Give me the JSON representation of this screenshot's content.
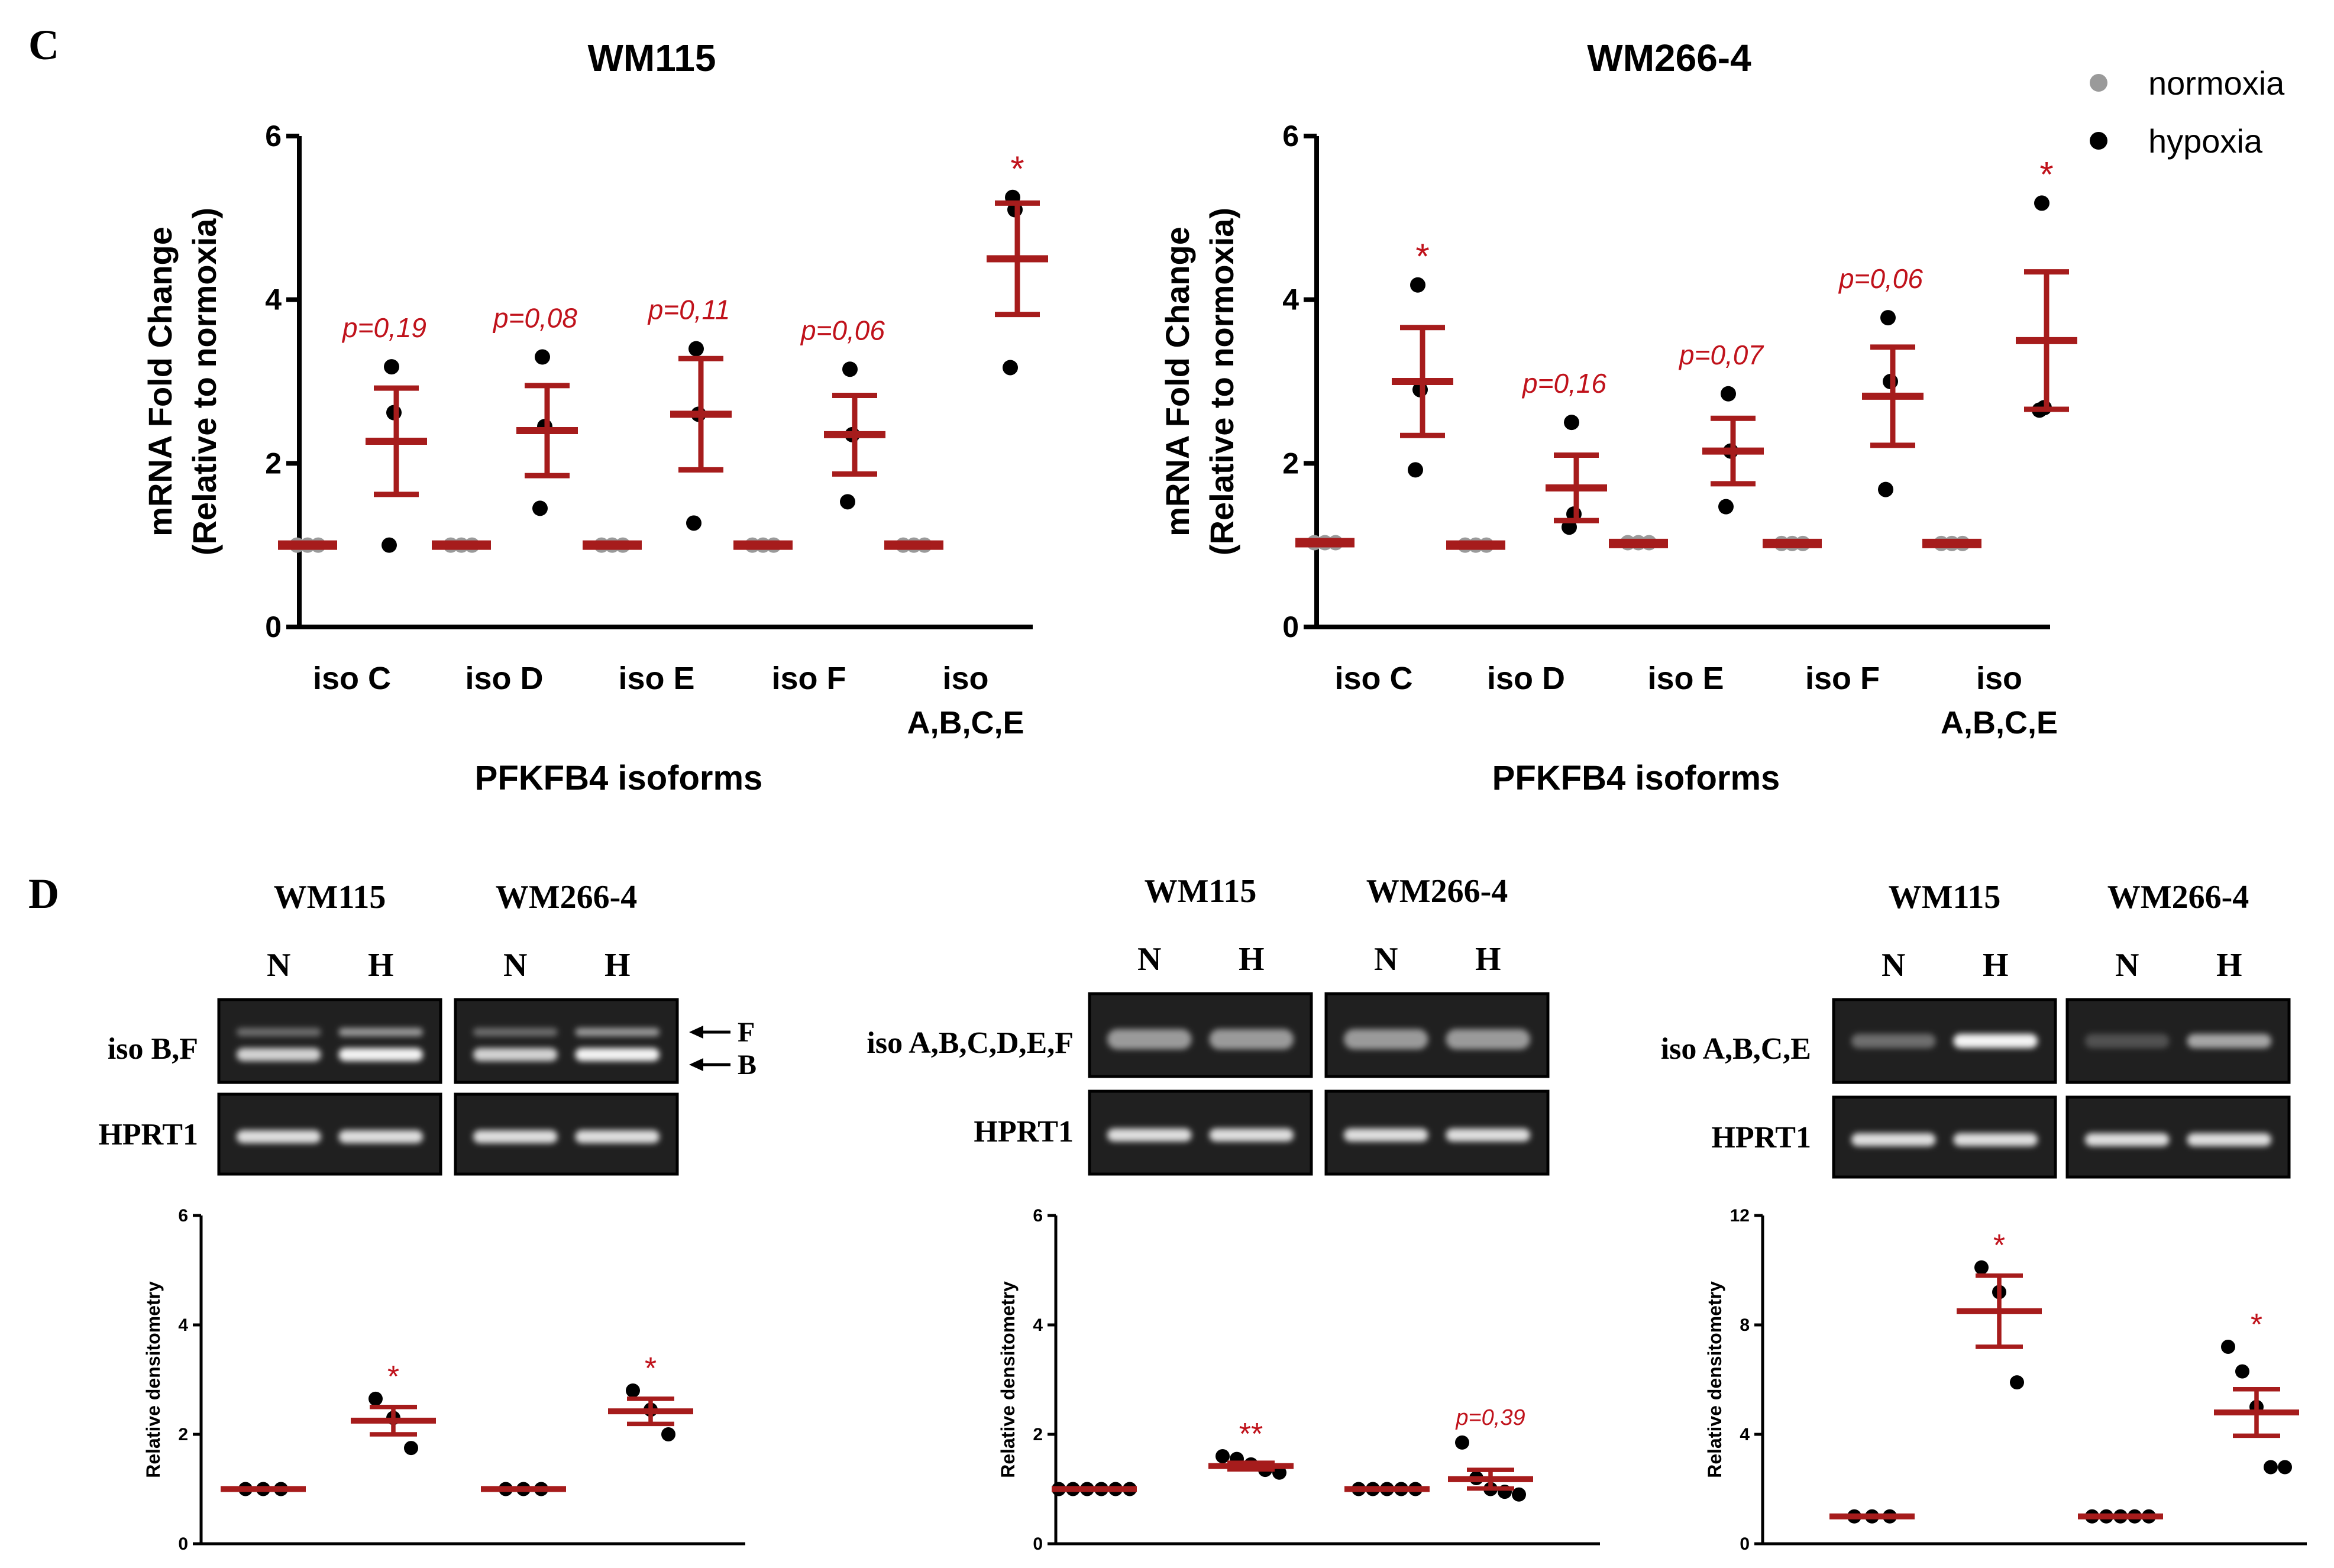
{
  "panels": {
    "C": {
      "letter": "C"
    },
    "D": {
      "letter": "D"
    }
  },
  "legend": {
    "normoxia": "normoxia",
    "hypoxia": "hypoxia",
    "colors": {
      "normoxia": "#9a9a9a",
      "hypoxia": "#000000"
    }
  },
  "colors": {
    "mean_sem": "#a61c1c",
    "annotation": "#c0121b",
    "axis": "#000000"
  },
  "gels": {
    "D1": {
      "cells": [
        "WM115",
        "WM266-4"
      ],
      "lanes": [
        "N",
        "H",
        "N",
        "H"
      ],
      "row_labels": [
        "iso B,F",
        "HPRT1"
      ],
      "arrow_labels": [
        "F",
        "B"
      ]
    },
    "D2": {
      "cells": [
        "WM115",
        "WM266-4"
      ],
      "lanes": [
        "N",
        "H",
        "N",
        "H"
      ],
      "row_labels": [
        "iso A,B,C,D,E,F",
        "HPRT1"
      ]
    },
    "D3": {
      "cells": [
        "WM115",
        "WM266-4"
      ],
      "lanes": [
        "N",
        "H",
        "N",
        "H"
      ],
      "row_labels": [
        "iso A,B,C,E",
        "HPRT1"
      ]
    }
  },
  "chart_data": [
    {
      "id": "C1",
      "type": "scatter",
      "title": "WM115",
      "xlabel": "PFKFB4 isoforms",
      "ylabel": [
        "mRNA Fold Change",
        "(Relative to normoxia)"
      ],
      "ylim": [
        0,
        6
      ],
      "yticks": [
        0,
        2,
        4,
        6
      ],
      "categories": [
        [
          "iso C"
        ],
        [
          "iso D"
        ],
        [
          "iso E"
        ],
        [
          "iso F"
        ],
        [
          "iso",
          "A,B,C,E"
        ]
      ],
      "groups": [
        {
          "normoxia": {
            "points": [
              1,
              1,
              1
            ],
            "mean": 1.0,
            "sem": 0.0
          },
          "hypoxia": {
            "points": [
              3.18,
              2.62,
              1.0
            ],
            "mean": 2.27,
            "sem": 0.65
          },
          "annotation": "p=0,19"
        },
        {
          "normoxia": {
            "points": [
              1,
              1,
              1
            ],
            "mean": 1.0,
            "sem": 0.0
          },
          "hypoxia": {
            "points": [
              3.3,
              2.45,
              1.45
            ],
            "mean": 2.4,
            "sem": 0.55
          },
          "annotation": "p=0,08"
        },
        {
          "normoxia": {
            "points": [
              1,
              1,
              1
            ],
            "mean": 1.0,
            "sem": 0.0
          },
          "hypoxia": {
            "points": [
              3.4,
              2.6,
              1.27
            ],
            "mean": 2.6,
            "sem": 0.68
          },
          "annotation": "p=0,11"
        },
        {
          "normoxia": {
            "points": [
              1,
              1,
              1
            ],
            "mean": 1.0,
            "sem": 0.0
          },
          "hypoxia": {
            "points": [
              3.15,
              2.35,
              1.53
            ],
            "mean": 2.35,
            "sem": 0.48
          },
          "annotation": "p=0,06"
        },
        {
          "normoxia": {
            "points": [
              1,
              1,
              1
            ],
            "mean": 1.0,
            "sem": 0.0
          },
          "hypoxia": {
            "points": [
              5.25,
              5.1,
              3.17
            ],
            "mean": 4.5,
            "sem": 0.68
          },
          "annotation": "*"
        }
      ]
    },
    {
      "id": "C2",
      "type": "scatter",
      "title": "WM266-4",
      "xlabel": "PFKFB4 isoforms",
      "ylabel": [
        "mRNA Fold Change",
        "(Relative to normoxia)"
      ],
      "ylim": [
        0,
        6
      ],
      "yticks": [
        0,
        2,
        4,
        6
      ],
      "categories": [
        [
          "iso C"
        ],
        [
          "iso D"
        ],
        [
          "iso E"
        ],
        [
          "iso F"
        ],
        [
          "iso",
          "A,B,C,E"
        ]
      ],
      "groups": [
        {
          "normoxia": {
            "points": [
              1.03,
              1.03,
              1.03
            ],
            "mean": 1.03,
            "sem": 0.0
          },
          "hypoxia": {
            "points": [
              4.18,
              2.9,
              1.92
            ],
            "mean": 3.0,
            "sem": 0.66
          },
          "annotation": "*"
        },
        {
          "normoxia": {
            "points": [
              1,
              1,
              1
            ],
            "mean": 1.0,
            "sem": 0.0
          },
          "hypoxia": {
            "points": [
              2.5,
              1.38,
              1.22
            ],
            "mean": 1.7,
            "sem": 0.4
          },
          "annotation": "p=0,16"
        },
        {
          "normoxia": {
            "points": [
              1.03,
              1.03,
              1.03
            ],
            "mean": 1.02,
            "sem": 0.0
          },
          "hypoxia": {
            "points": [
              2.85,
              2.15,
              1.47
            ],
            "mean": 2.15,
            "sem": 0.4
          },
          "annotation": "p=0,07"
        },
        {
          "normoxia": {
            "points": [
              1.02,
              1.02,
              1.02
            ],
            "mean": 1.02,
            "sem": 0.0
          },
          "hypoxia": {
            "points": [
              3.78,
              3.0,
              1.68
            ],
            "mean": 2.82,
            "sem": 0.6
          },
          "annotation": "p=0,06"
        },
        {
          "normoxia": {
            "points": [
              1.02,
              1.02,
              1.02
            ],
            "mean": 1.02,
            "sem": 0.0
          },
          "hypoxia": {
            "points": [
              5.18,
              2.68,
              2.65
            ],
            "mean": 3.5,
            "sem": 0.84
          },
          "annotation": "*"
        }
      ]
    },
    {
      "id": "D1",
      "type": "scatter",
      "ylabel": "Relative densitometry",
      "ylim": [
        0,
        6
      ],
      "yticks": [
        0,
        2,
        4,
        6
      ],
      "groups": [
        {
          "points": [
            1,
            1,
            1
          ],
          "mean": 1.0,
          "sem": 0.0,
          "annotation": ""
        },
        {
          "points": [
            2.65,
            2.3,
            1.75
          ],
          "mean": 2.25,
          "sem": 0.25,
          "annotation": "*"
        },
        {
          "points": [
            1,
            1,
            1
          ],
          "mean": 1.0,
          "sem": 0.0,
          "annotation": ""
        },
        {
          "points": [
            2.8,
            2.45,
            2.0
          ],
          "mean": 2.42,
          "sem": 0.23,
          "annotation": "*"
        }
      ]
    },
    {
      "id": "D2",
      "type": "scatter",
      "ylabel": "Relative densitometry",
      "ylim": [
        0,
        6
      ],
      "yticks": [
        0,
        2,
        4,
        6
      ],
      "groups": [
        {
          "points": [
            1,
            1,
            1,
            1,
            1,
            1
          ],
          "mean": 1.0,
          "sem": 0.0,
          "annotation": ""
        },
        {
          "points": [
            1.6,
            1.55,
            1.45,
            1.35,
            1.3
          ],
          "mean": 1.42,
          "sem": 0.06,
          "annotation": "**"
        },
        {
          "points": [
            1,
            1,
            1,
            1,
            1
          ],
          "mean": 1.0,
          "sem": 0.0,
          "annotation": ""
        },
        {
          "points": [
            1.85,
            1.2,
            1.0,
            0.95,
            0.9
          ],
          "mean": 1.18,
          "sem": 0.17,
          "annotation": "p=0,39"
        }
      ]
    },
    {
      "id": "D3",
      "type": "scatter",
      "ylabel": "Relative densitometry",
      "ylim": [
        0,
        12
      ],
      "yticks": [
        0,
        4,
        8,
        12
      ],
      "groups": [
        {
          "points": [
            1,
            1,
            1
          ],
          "mean": 1.0,
          "sem": 0.0,
          "annotation": ""
        },
        {
          "points": [
            10.1,
            9.2,
            5.9
          ],
          "mean": 8.5,
          "sem": 1.3,
          "annotation": "*"
        },
        {
          "points": [
            1,
            1,
            1,
            1,
            1
          ],
          "mean": 1.0,
          "sem": 0.0,
          "annotation": ""
        },
        {
          "points": [
            7.2,
            6.3,
            5.0,
            2.8,
            2.8
          ],
          "mean": 4.8,
          "sem": 0.85,
          "annotation": "*"
        }
      ]
    }
  ]
}
